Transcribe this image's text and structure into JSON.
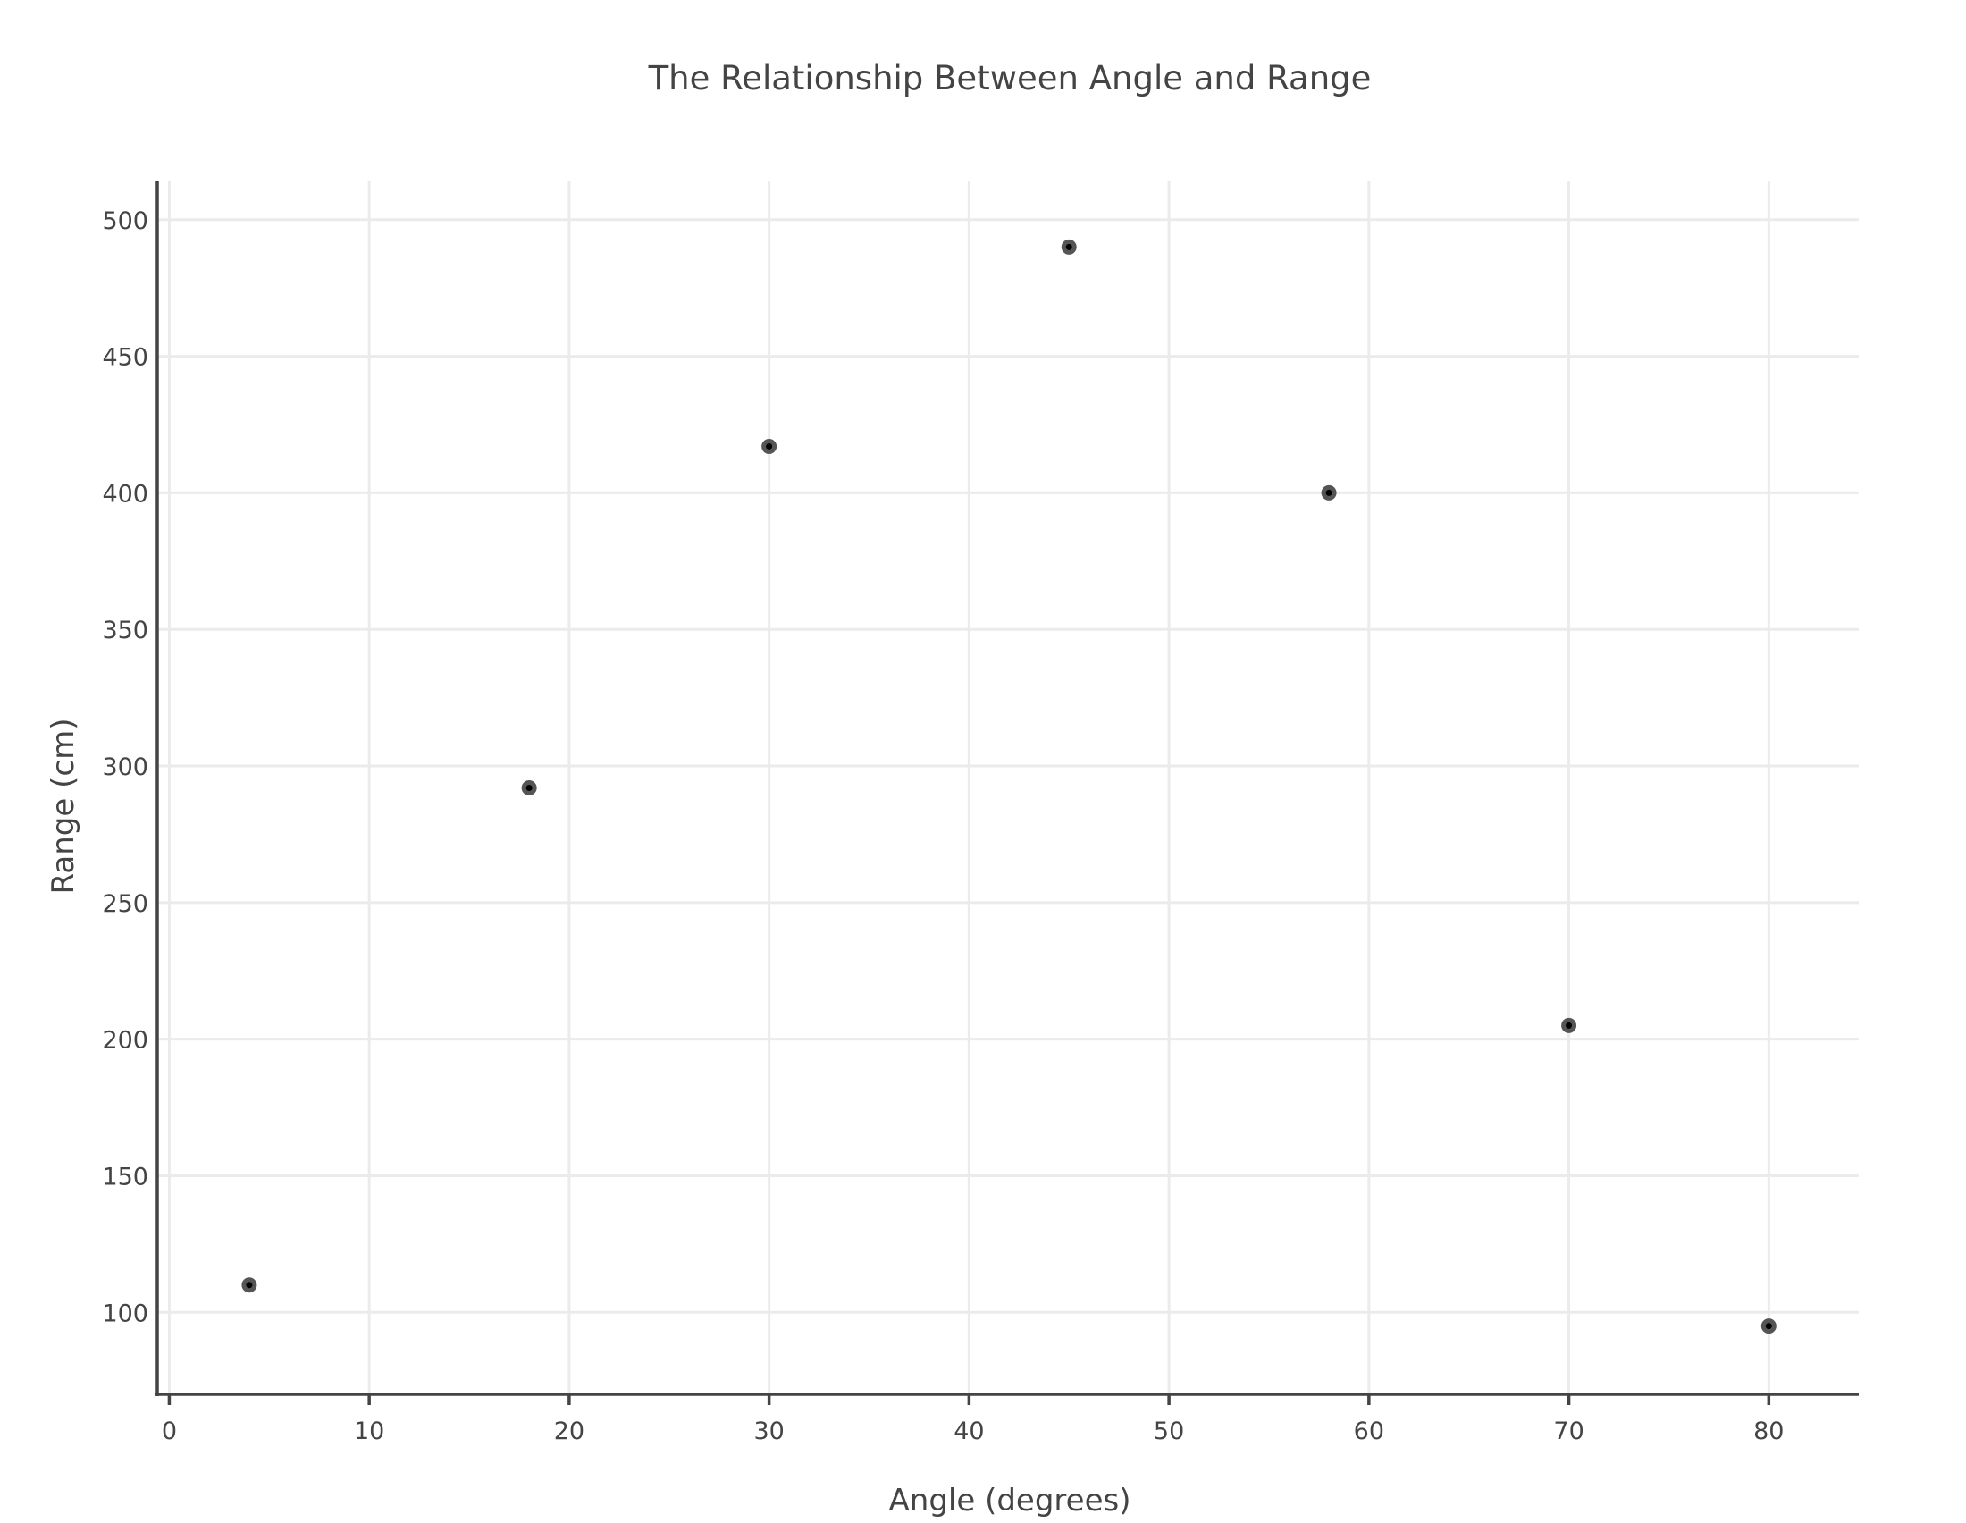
{
  "chart_data": {
    "type": "scatter",
    "title": "The Relationship Between Angle and Range",
    "xlabel": "Angle (degrees)",
    "ylabel": "Range (cm)",
    "xlim": [
      -0.6,
      84.5
    ],
    "ylim": [
      70,
      514
    ],
    "xticks": [
      0,
      10,
      20,
      30,
      40,
      50,
      60,
      70,
      80
    ],
    "yticks": [
      100,
      150,
      200,
      250,
      300,
      350,
      400,
      450,
      500
    ],
    "grid": true,
    "legend": "none",
    "marker_color": "#000000",
    "series": [
      {
        "x": [
          4,
          18,
          30,
          45,
          58,
          70,
          80
        ],
        "y": [
          110,
          292,
          417,
          490,
          400,
          205,
          95
        ]
      }
    ]
  }
}
